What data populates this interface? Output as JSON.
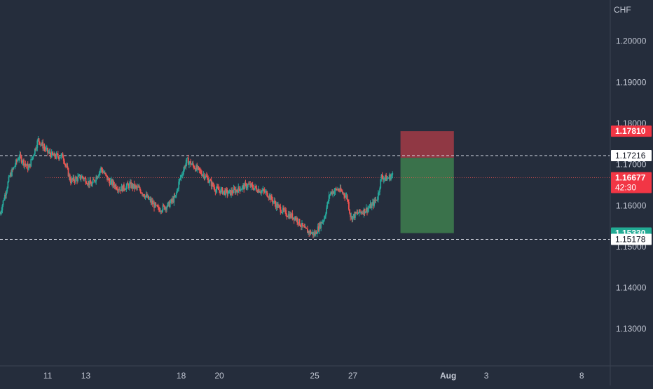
{
  "chart_data": {
    "type": "candlestick",
    "currency": "CHF",
    "y_axis": {
      "ticks": [
        1.2,
        1.19,
        1.18,
        1.17,
        1.16,
        1.15,
        1.14,
        1.13
      ],
      "tick_labels": [
        "1.20000",
        "1.19000",
        "1.18000",
        "1.17000",
        "1.16000",
        "1.15000",
        "1.14000",
        "1.13000"
      ],
      "ylim": [
        1.121,
        1.21
      ]
    },
    "x_axis": {
      "tick_labels": [
        "11",
        "13",
        "18",
        "20",
        "25",
        "27",
        "Aug",
        "3",
        "8"
      ],
      "tick_days": [
        11,
        13,
        18,
        20,
        25,
        27,
        32,
        34,
        39
      ],
      "xlim": [
        8.5,
        40.5
      ]
    },
    "candle_path": [
      [
        8.5,
        1.158
      ],
      [
        9.0,
        1.167
      ],
      [
        9.5,
        1.172
      ],
      [
        10.0,
        1.169
      ],
      [
        10.5,
        1.176
      ],
      [
        11.0,
        1.173
      ],
      [
        11.3,
        1.172
      ],
      [
        11.8,
        1.172
      ],
      [
        12.2,
        1.166
      ],
      [
        12.8,
        1.167
      ],
      [
        13.3,
        1.165
      ],
      [
        13.8,
        1.169
      ],
      [
        14.2,
        1.166
      ],
      [
        14.8,
        1.164
      ],
      [
        15.3,
        1.165
      ],
      [
        15.8,
        1.164
      ],
      [
        16.2,
        1.162
      ],
      [
        16.8,
        1.159
      ],
      [
        17.3,
        1.16
      ],
      [
        17.7,
        1.162
      ],
      [
        17.9,
        1.166
      ],
      [
        18.3,
        1.171
      ],
      [
        18.8,
        1.169
      ],
      [
        19.3,
        1.167
      ],
      [
        19.8,
        1.164
      ],
      [
        20.5,
        1.163
      ],
      [
        21.0,
        1.164
      ],
      [
        21.5,
        1.165
      ],
      [
        22.0,
        1.164
      ],
      [
        22.5,
        1.163
      ],
      [
        23.0,
        1.16
      ],
      [
        23.5,
        1.158
      ],
      [
        24.0,
        1.157
      ],
      [
        24.5,
        1.154
      ],
      [
        25.0,
        1.153
      ],
      [
        25.5,
        1.157
      ],
      [
        25.8,
        1.163
      ],
      [
        26.2,
        1.164
      ],
      [
        26.5,
        1.163
      ],
      [
        26.7,
        1.162
      ],
      [
        26.9,
        1.157
      ],
      [
        27.2,
        1.158
      ],
      [
        27.7,
        1.159
      ],
      [
        28.0,
        1.16
      ],
      [
        28.3,
        1.162
      ],
      [
        28.5,
        1.167
      ],
      [
        28.8,
        1.1665
      ],
      [
        29.1,
        1.1675
      ]
    ],
    "horizontal_lines": [
      {
        "value": 1.17216,
        "label": "1.17216",
        "style": "dashed"
      },
      {
        "value": 1.15178,
        "label": "1.15178",
        "style": "dashed"
      }
    ],
    "current_price": {
      "value": 1.16677,
      "label": "1.16677",
      "countdown": "42:30"
    },
    "position": {
      "type": "short",
      "entry": 1.1716,
      "stop": 1.1781,
      "target": 1.1533,
      "start_day": 29.5,
      "end_day": 32.3,
      "stop_label": "1.17810",
      "target_label": "1.15330"
    },
    "colors": {
      "background": "#252d3c",
      "up": "#26a69a",
      "down": "#ef5350",
      "stop_zone": "#a33b45",
      "target_zone": "#3d7a4d",
      "stop_badge": "#f23645",
      "target_badge": "#22ab94",
      "price_badge": "#f23645",
      "axis_text": "#c3c8d4"
    }
  }
}
